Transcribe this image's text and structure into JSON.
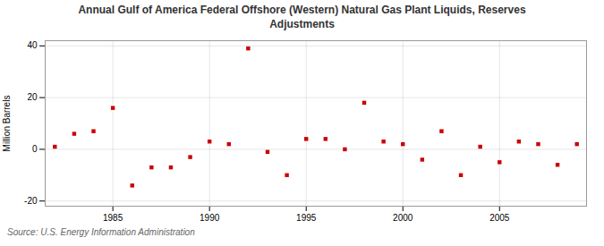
{
  "chart_data": {
    "type": "scatter",
    "title": "Annual Gulf of America Federal Offshore (Western) Natural Gas Plant Liquids, Reserves\nAdjustments",
    "ylabel": "Million Barrels",
    "caption": "Source: U.S. Energy Information Administration",
    "x": [
      1982,
      1983,
      1984,
      1985,
      1986,
      1987,
      1988,
      1989,
      1990,
      1991,
      1992,
      1993,
      1994,
      1995,
      1996,
      1997,
      1998,
      1999,
      2000,
      2001,
      2002,
      2003,
      2004,
      2005,
      2006,
      2007,
      2008,
      2009
    ],
    "values": [
      1,
      6,
      7,
      16,
      -14,
      -7,
      -7,
      -3,
      3,
      2,
      39,
      -1,
      -10,
      4,
      4,
      0,
      18,
      3,
      2,
      -4,
      7,
      -10,
      1,
      -5,
      3,
      2,
      -6,
      2
    ],
    "color": "#cc0000",
    "marker": "square",
    "xlim": [
      1981.5,
      2009.5
    ],
    "ylim": [
      -22,
      42
    ],
    "xticks": [
      1985,
      1990,
      1995,
      2000,
      2005
    ],
    "yticks": [
      -20,
      0,
      20,
      40
    ],
    "grid": true
  }
}
